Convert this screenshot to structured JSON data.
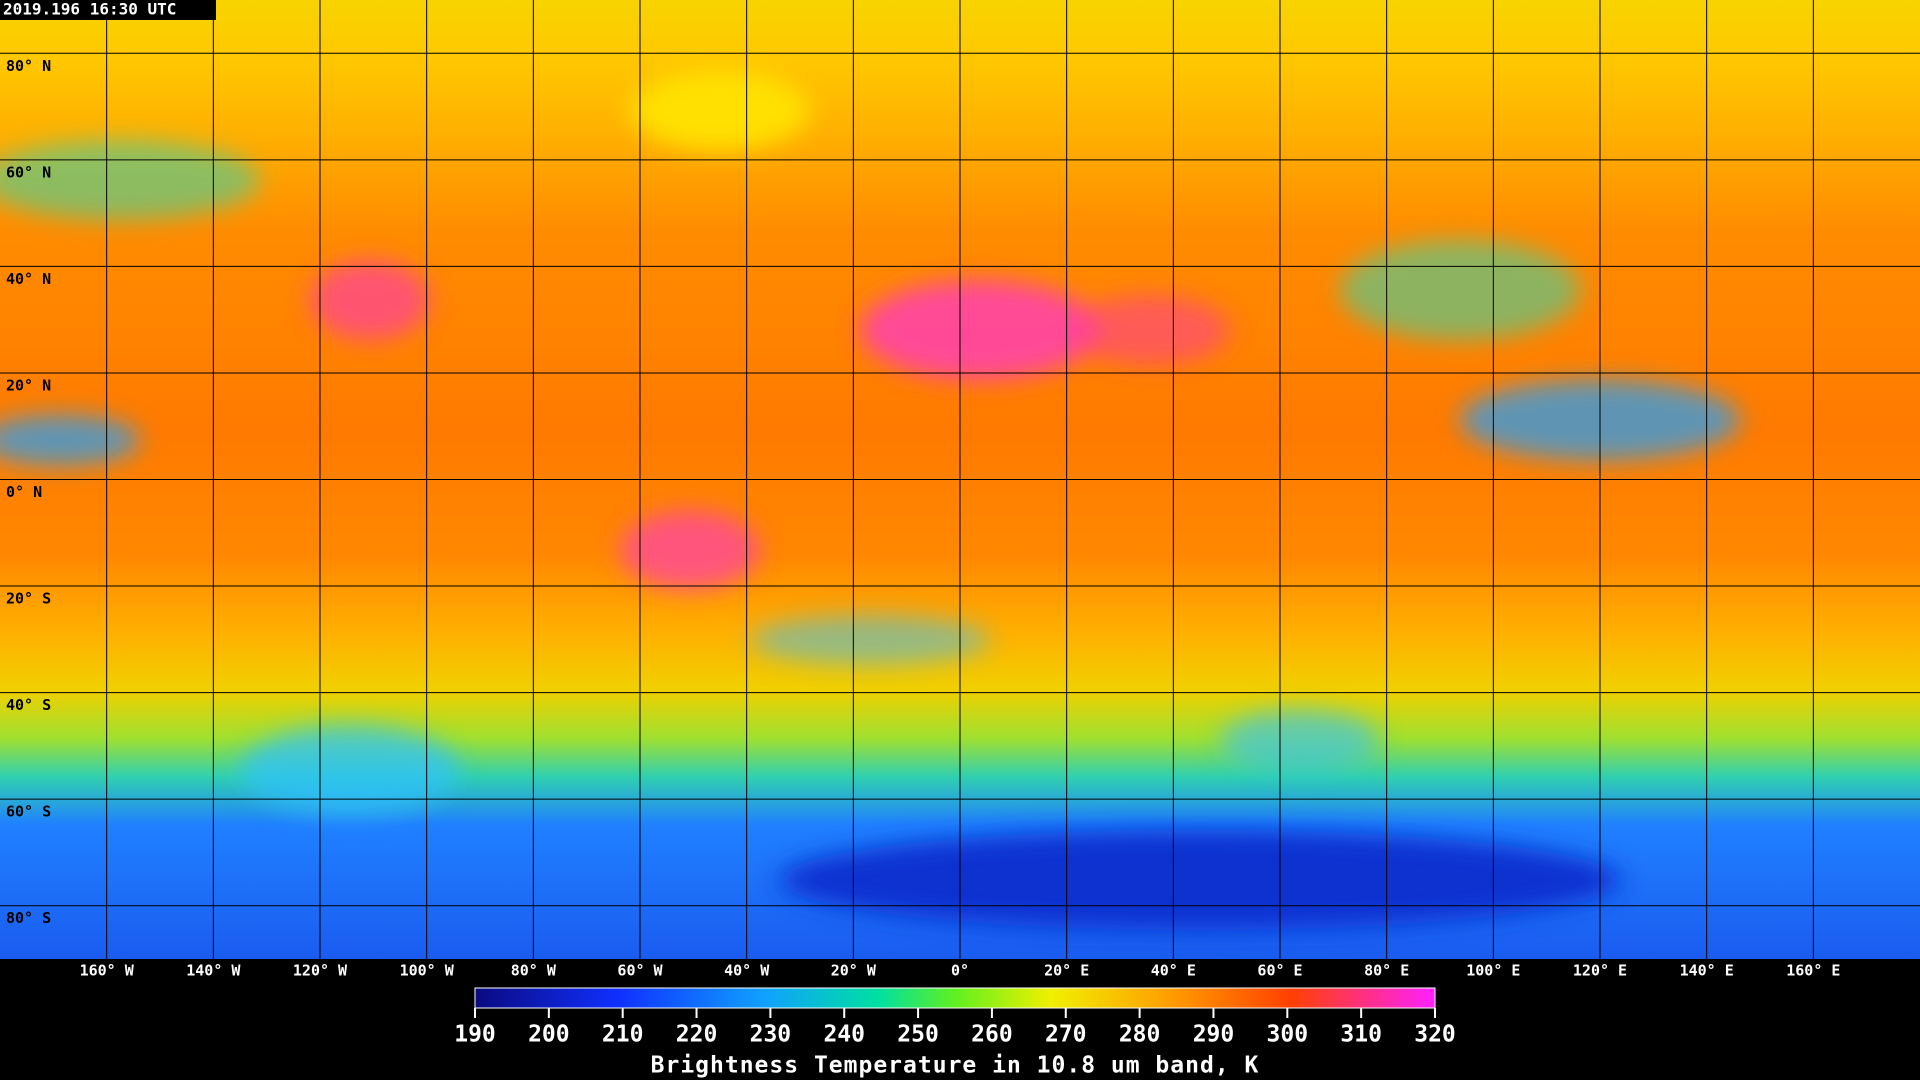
{
  "header": {
    "timestamp": "2019.196 16:30 UTC"
  },
  "map": {
    "lon_range": [
      -180,
      180
    ],
    "lat_range": [
      90,
      -90
    ],
    "lat_lines": [
      {
        "value": 80,
        "label": "80° N"
      },
      {
        "value": 60,
        "label": "60° N"
      },
      {
        "value": 40,
        "label": "40° N"
      },
      {
        "value": 20,
        "label": "20° N"
      },
      {
        "value": 0,
        "label": "0° N"
      },
      {
        "value": -20,
        "label": "20° S"
      },
      {
        "value": -40,
        "label": "40° S"
      },
      {
        "value": -60,
        "label": "60° S"
      },
      {
        "value": -80,
        "label": "80° S"
      }
    ],
    "lon_lines": [
      {
        "value": -160,
        "label": "160° W"
      },
      {
        "value": -140,
        "label": "140° W"
      },
      {
        "value": -120,
        "label": "120° W"
      },
      {
        "value": -100,
        "label": "100° W"
      },
      {
        "value": -80,
        "label": "80° W"
      },
      {
        "value": -60,
        "label": "60° W"
      },
      {
        "value": -40,
        "label": "40° W"
      },
      {
        "value": -20,
        "label": "20° W"
      },
      {
        "value": 0,
        "label": "0°"
      },
      {
        "value": 20,
        "label": "20° E"
      },
      {
        "value": 40,
        "label": "40° E"
      },
      {
        "value": 60,
        "label": "60° E"
      },
      {
        "value": 80,
        "label": "80° E"
      },
      {
        "value": 100,
        "label": "100° E"
      },
      {
        "value": 120,
        "label": "120° E"
      },
      {
        "value": 140,
        "label": "140° E"
      },
      {
        "value": 160,
        "label": "160° E"
      }
    ]
  },
  "colorbar": {
    "range": [
      190,
      320
    ],
    "ticks": [
      190,
      200,
      210,
      220,
      230,
      240,
      250,
      260,
      270,
      280,
      290,
      300,
      310,
      320
    ],
    "title": "Brightness Temperature in 10.8 um band, K"
  }
}
